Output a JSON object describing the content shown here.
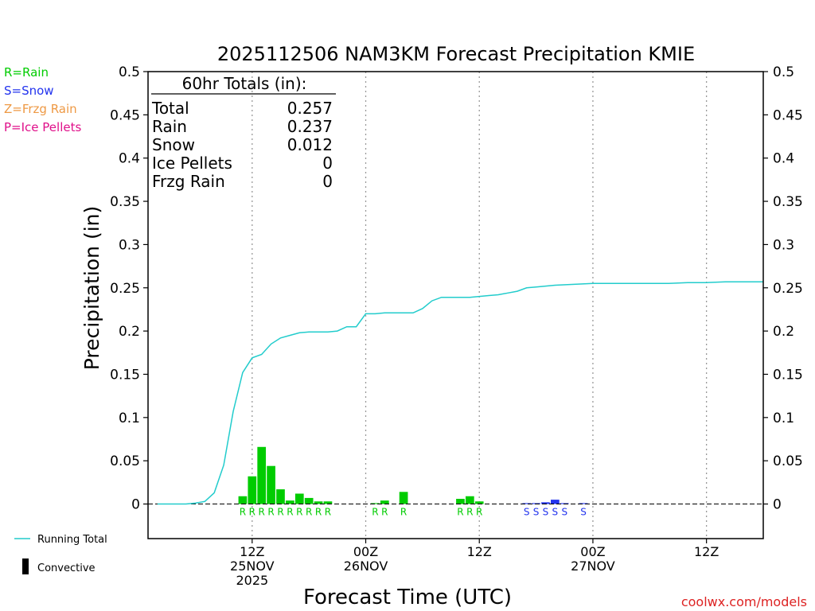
{
  "chart_data": {
    "type": "bar",
    "title": "2025112506 NAM3KM Forecast Precipitation KMIE",
    "xlabel": "Forecast Time (UTC)",
    "ylabel": "Precipitation (in)",
    "ylim": [
      -0.04,
      0.5
    ],
    "xlim_hours": [
      -5,
      60
    ],
    "y_ticks": [
      0,
      0.05,
      0.1,
      0.15,
      0.2,
      0.25,
      0.3,
      0.35,
      0.4,
      0.45,
      0.5
    ],
    "y_tick_labels": [
      "0",
      "0.05",
      "0.1",
      "0.15",
      "0.2",
      "0.25",
      "0.3",
      "0.35",
      "0.4",
      "0.45",
      "0.5"
    ],
    "x_ticks": [
      {
        "hour": 6,
        "lines": [
          "12Z",
          "25NOV",
          "2025"
        ]
      },
      {
        "hour": 18,
        "lines": [
          "00Z",
          "26NOV"
        ]
      },
      {
        "hour": 30,
        "lines": [
          "12Z"
        ]
      },
      {
        "hour": 42,
        "lines": [
          "00Z",
          "27NOV"
        ]
      },
      {
        "hour": 54,
        "lines": [
          "12Z"
        ]
      }
    ],
    "grid_hours": [
      6,
      18,
      30,
      42,
      54
    ],
    "colors": {
      "rain": "#00cc00",
      "snow": "#2233ee",
      "frzg": "#ee9944",
      "ice": "#e0108a",
      "running_total": "#22cccc",
      "text": "#000000"
    },
    "precip_types": [
      {
        "label": "R=Rain",
        "color": "#00cc00"
      },
      {
        "label": "S=Snow",
        "color": "#2233ee"
      },
      {
        "label": "Z=Frzg Rain",
        "color": "#ee9944"
      },
      {
        "label": "P=Ice Pellets",
        "color": "#e0108a"
      }
    ],
    "totals": {
      "header": "60hr Totals (in):",
      "rows": [
        {
          "label": "Total",
          "value": "0.257"
        },
        {
          "label": "Rain",
          "value": "0.237"
        },
        {
          "label": "Snow",
          "value": "0.012"
        },
        {
          "label": "Ice Pellets",
          "value": "0"
        },
        {
          "label": "Frzg Rain",
          "value": "0"
        }
      ]
    },
    "bars": [
      {
        "hour": 5,
        "value": 0.009,
        "type": "rain"
      },
      {
        "hour": 6,
        "value": 0.032,
        "type": "rain"
      },
      {
        "hour": 7,
        "value": 0.066,
        "type": "rain"
      },
      {
        "hour": 8,
        "value": 0.044,
        "type": "rain"
      },
      {
        "hour": 9,
        "value": 0.017,
        "type": "rain"
      },
      {
        "hour": 10,
        "value": 0.004,
        "type": "rain"
      },
      {
        "hour": 11,
        "value": 0.012,
        "type": "rain"
      },
      {
        "hour": 12,
        "value": 0.007,
        "type": "rain"
      },
      {
        "hour": 13,
        "value": 0.003,
        "type": "rain"
      },
      {
        "hour": 14,
        "value": 0.003,
        "type": "rain"
      },
      {
        "hour": 19,
        "value": 0.001,
        "type": "rain"
      },
      {
        "hour": 20,
        "value": 0.004,
        "type": "rain"
      },
      {
        "hour": 22,
        "value": 0.014,
        "type": "rain"
      },
      {
        "hour": 28,
        "value": 0.006,
        "type": "rain"
      },
      {
        "hour": 29,
        "value": 0.009,
        "type": "rain"
      },
      {
        "hour": 30,
        "value": 0.003,
        "type": "rain"
      },
      {
        "hour": 35,
        "value": 0.001,
        "type": "snow"
      },
      {
        "hour": 36,
        "value": 0.001,
        "type": "snow"
      },
      {
        "hour": 37,
        "value": 0.002,
        "type": "snow"
      },
      {
        "hour": 38,
        "value": 0.005,
        "type": "snow"
      },
      {
        "hour": 39,
        "value": 0.001,
        "type": "snow"
      },
      {
        "hour": 41,
        "value": 0.001,
        "type": "snow"
      }
    ],
    "type_markers": [
      {
        "hour": 5,
        "letter": "R",
        "type": "rain"
      },
      {
        "hour": 6,
        "letter": "R",
        "type": "rain"
      },
      {
        "hour": 7,
        "letter": "R",
        "type": "rain"
      },
      {
        "hour": 8,
        "letter": "R",
        "type": "rain"
      },
      {
        "hour": 9,
        "letter": "R",
        "type": "rain"
      },
      {
        "hour": 10,
        "letter": "R",
        "type": "rain"
      },
      {
        "hour": 11,
        "letter": "R",
        "type": "rain"
      },
      {
        "hour": 12,
        "letter": "R",
        "type": "rain"
      },
      {
        "hour": 13,
        "letter": "R",
        "type": "rain"
      },
      {
        "hour": 14,
        "letter": "R",
        "type": "rain"
      },
      {
        "hour": 19,
        "letter": "R",
        "type": "rain"
      },
      {
        "hour": 20,
        "letter": "R",
        "type": "rain"
      },
      {
        "hour": 22,
        "letter": "R",
        "type": "rain"
      },
      {
        "hour": 28,
        "letter": "R",
        "type": "rain"
      },
      {
        "hour": 29,
        "letter": "R",
        "type": "rain"
      },
      {
        "hour": 30,
        "letter": "R",
        "type": "rain"
      },
      {
        "hour": 35,
        "letter": "S",
        "type": "snow"
      },
      {
        "hour": 36,
        "letter": "S",
        "type": "snow"
      },
      {
        "hour": 37,
        "letter": "S",
        "type": "snow"
      },
      {
        "hour": 38,
        "letter": "S",
        "type": "snow"
      },
      {
        "hour": 39,
        "letter": "S",
        "type": "snow"
      },
      {
        "hour": 41,
        "letter": "S",
        "type": "snow"
      }
    ],
    "running_total": {
      "name": "Running Total",
      "x": [
        -4,
        -1,
        0,
        1,
        2,
        3,
        4,
        5,
        6,
        7,
        8,
        9,
        10,
        11,
        12,
        13,
        14,
        15,
        16,
        17,
        18,
        19,
        20,
        21,
        22,
        23,
        24,
        25,
        26,
        27,
        28,
        29,
        30,
        31,
        32,
        33,
        34,
        35,
        36,
        37,
        38,
        40,
        42,
        44,
        46,
        48,
        50,
        52,
        54,
        56,
        58,
        60
      ],
      "values": [
        0,
        0,
        0.001,
        0.003,
        0.013,
        0.045,
        0.107,
        0.152,
        0.169,
        0.173,
        0.185,
        0.192,
        0.195,
        0.198,
        0.199,
        0.199,
        0.199,
        0.2,
        0.205,
        0.205,
        0.22,
        0.22,
        0.221,
        0.221,
        0.221,
        0.221,
        0.226,
        0.235,
        0.239,
        0.239,
        0.239,
        0.239,
        0.24,
        0.241,
        0.242,
        0.244,
        0.246,
        0.25,
        0.251,
        0.252,
        0.253,
        0.254,
        0.255,
        0.255,
        0.255,
        0.255,
        0.255,
        0.256,
        0.256,
        0.257,
        0.257,
        0.257
      ]
    },
    "legend": {
      "running_total_label": "Running Total",
      "convective_label": "Convective"
    },
    "credit": "coolwx.com/models"
  }
}
